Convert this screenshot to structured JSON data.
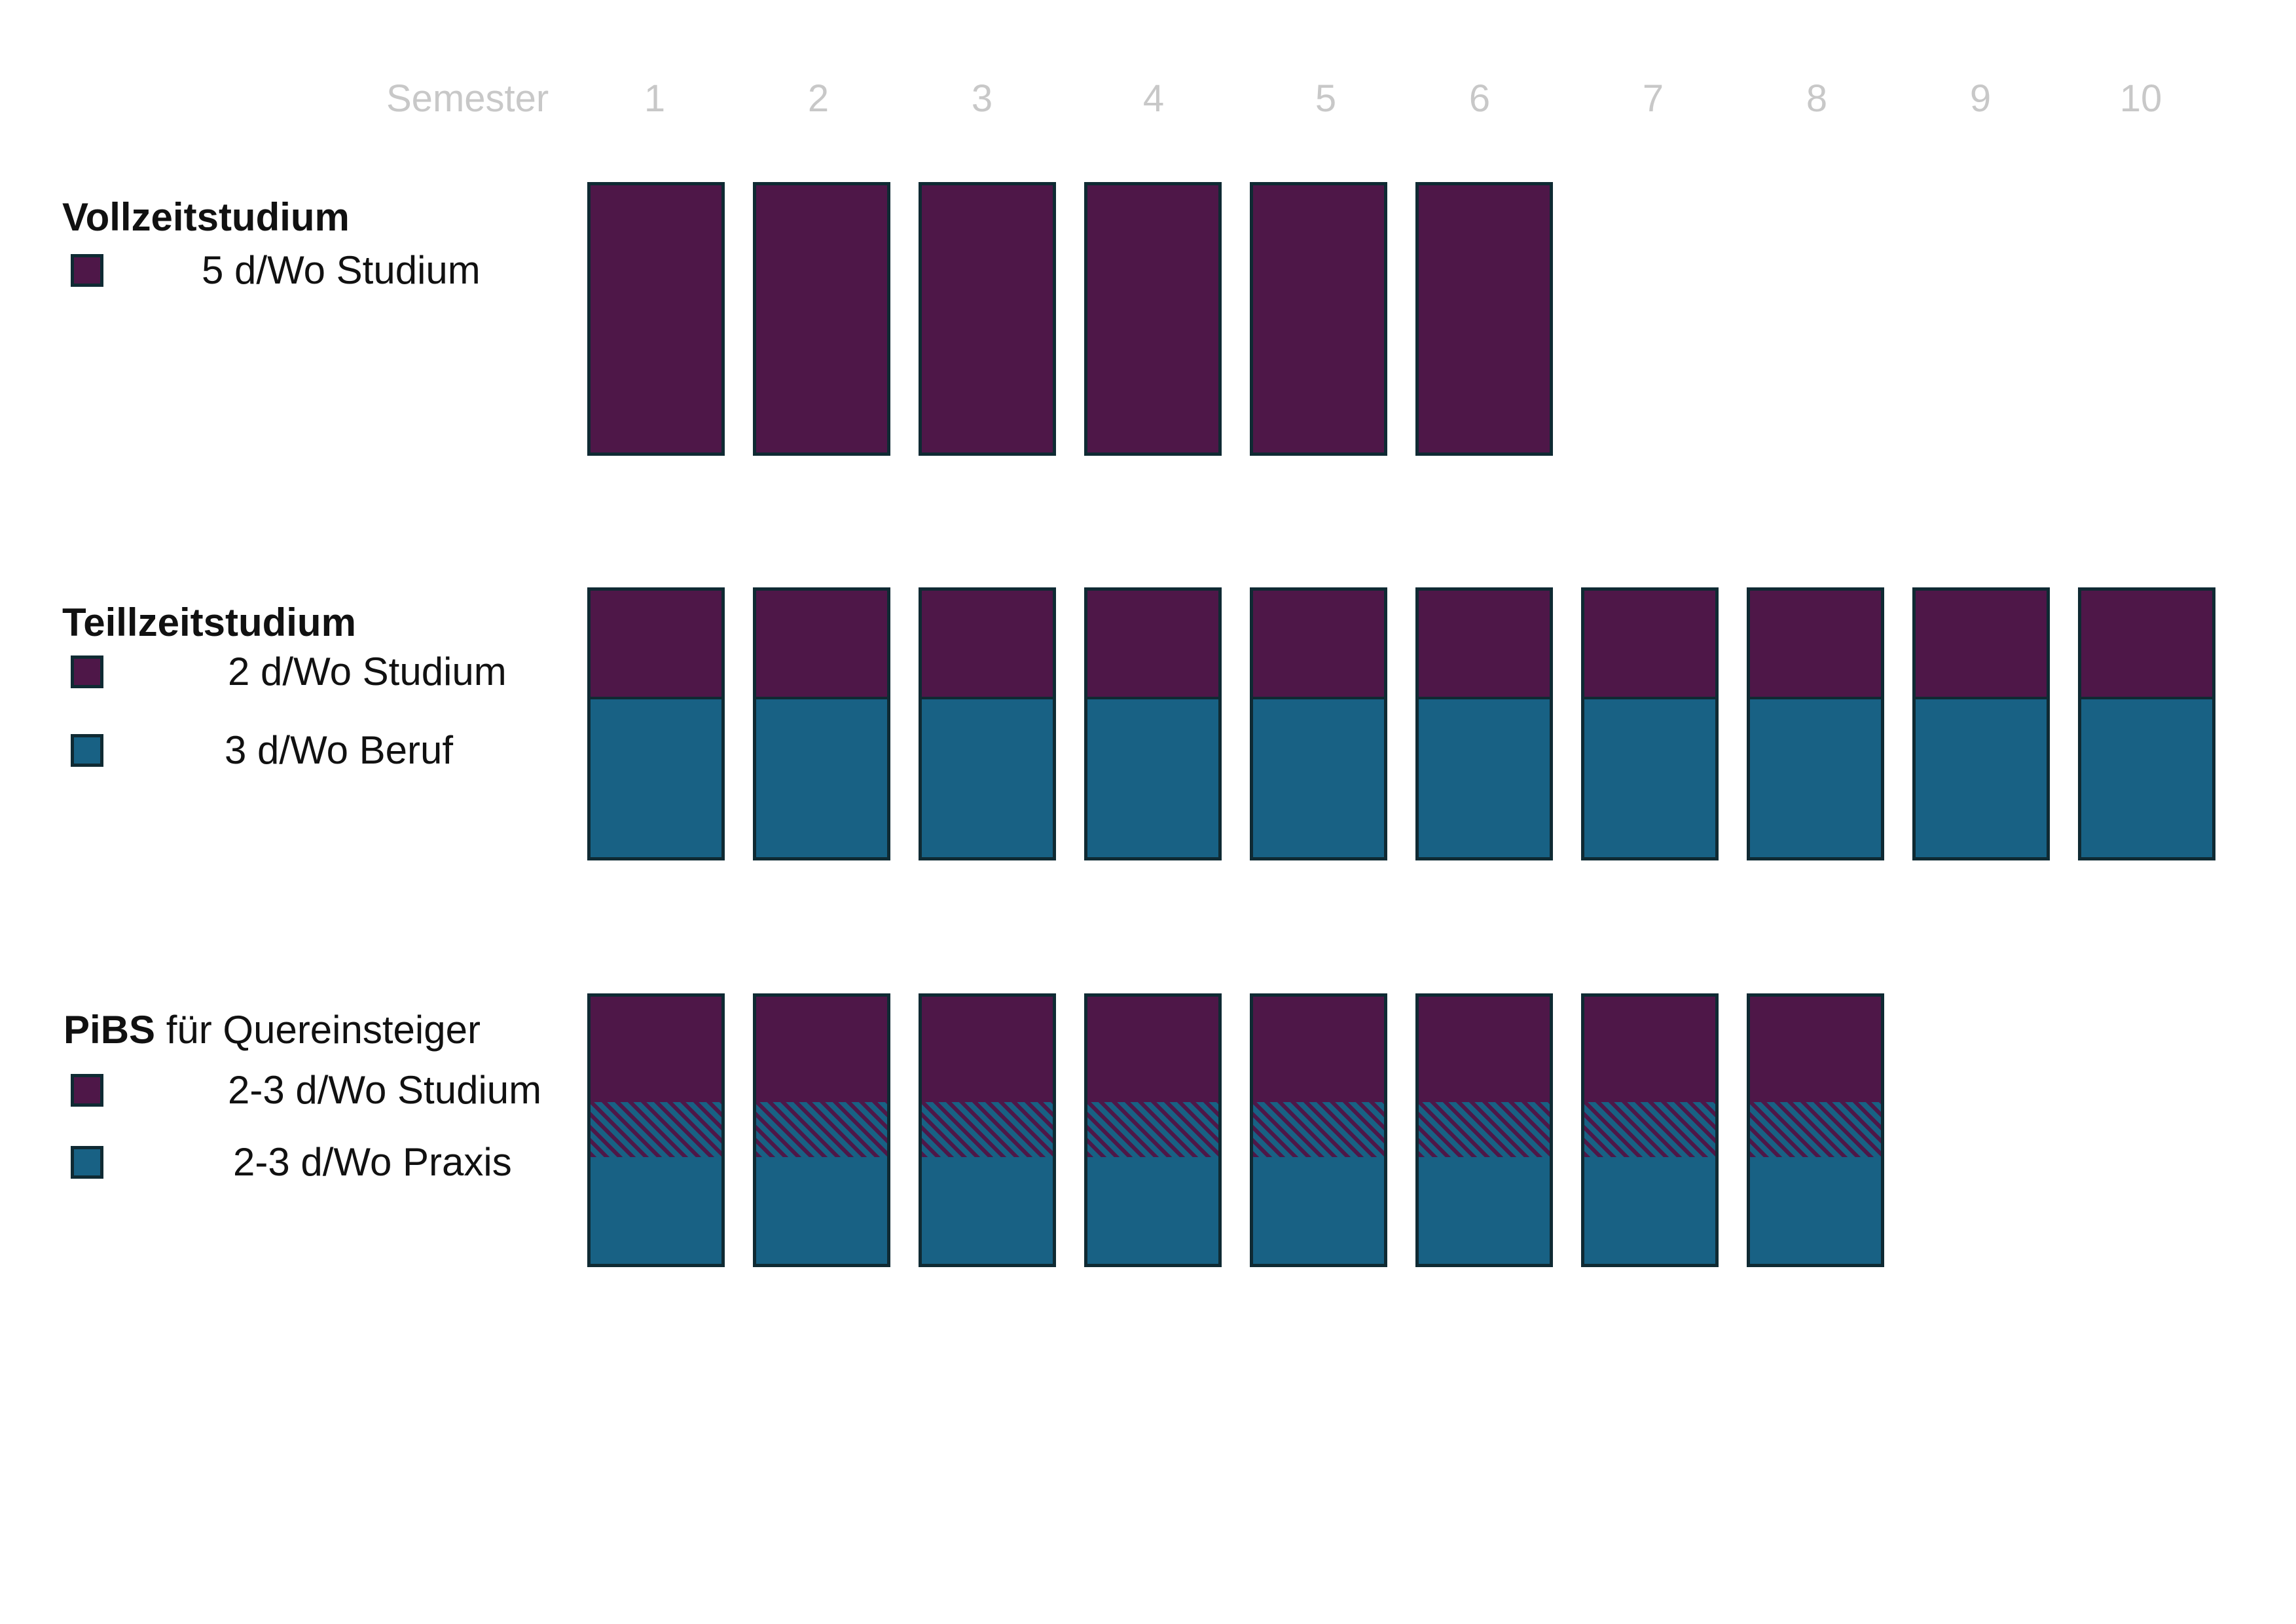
{
  "colors": {
    "study": "#4e1748",
    "work": "#186184",
    "border": "#0f2a33",
    "header_text": "#c8c8c8"
  },
  "header": {
    "label": "Semester",
    "semesters": [
      "1",
      "2",
      "3",
      "4",
      "5",
      "6",
      "7",
      "8",
      "9",
      "10"
    ]
  },
  "groups": [
    {
      "id": "vollzeit",
      "title_bold": "Vollzeitstudium",
      "title_rest": "",
      "semester_count": 6,
      "composition": "study-only",
      "legend": [
        {
          "label": "5 d/Wo Studium",
          "color": "#4e1748"
        }
      ]
    },
    {
      "id": "teilzeit",
      "title_bold": "Teillzeitstudium",
      "title_rest": "",
      "semester_count": 10,
      "composition": "study-top-work-bottom",
      "legend": [
        {
          "label": "2 d/Wo Studium",
          "color": "#4e1748"
        },
        {
          "label": "3 d/Wo Beruf",
          "color": "#186184"
        }
      ]
    },
    {
      "id": "pibs",
      "title_bold": "PiBS",
      "title_rest": " für Quereinsteiger",
      "semester_count": 8,
      "composition": "study-hatched-work",
      "legend": [
        {
          "label": "2-3 d/Wo Studium",
          "color": "#4e1748"
        },
        {
          "label": "2-3 d/Wo Praxis",
          "color": "#186184"
        }
      ]
    }
  ]
}
